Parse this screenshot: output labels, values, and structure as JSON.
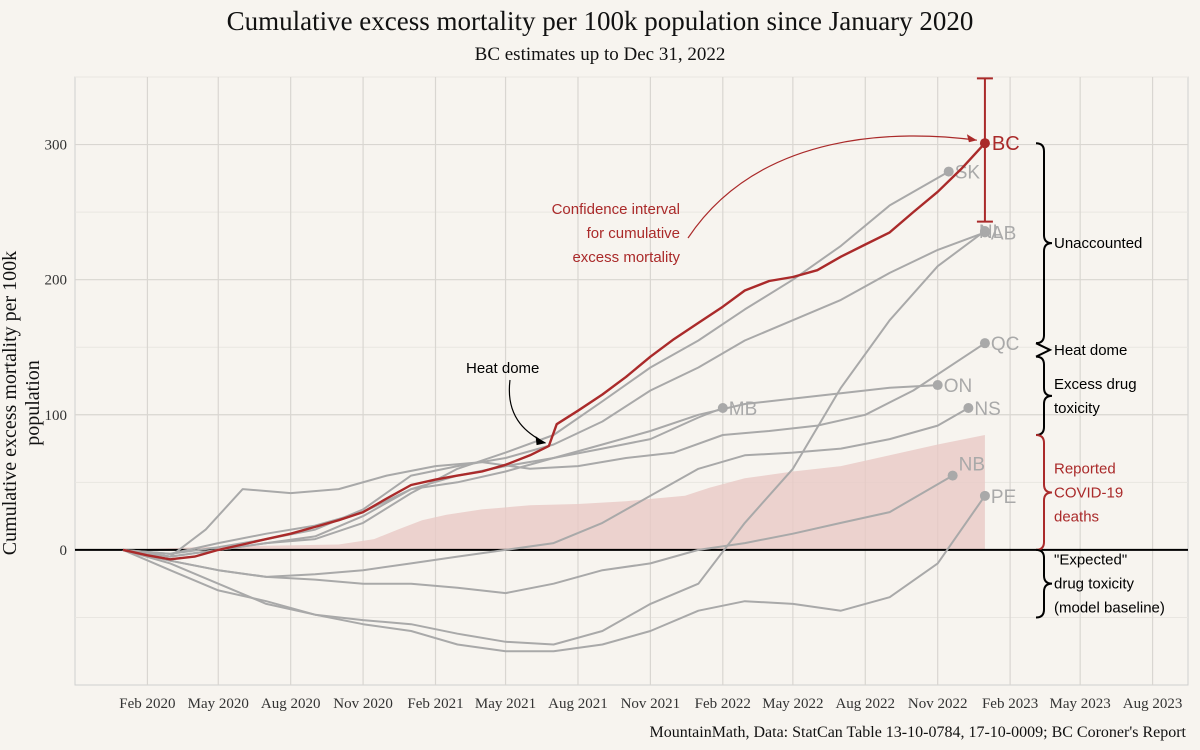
{
  "chart_data": {
    "type": "line",
    "title": "Cumulative excess mortality per 100k population since January 2020",
    "subtitle": "BC estimates up to Dec 31, 2022",
    "ylabel": "Cumulative excess mortality per 100k population",
    "xlabel": "",
    "caption": "MountainMath, Data: StatCan Table 13-10-0784, 17-10-0009; BC Coroner's Report",
    "ylim": [
      -100,
      350
    ],
    "xlim": [
      "2019-11-01",
      "2023-09-15"
    ],
    "y_ticks": [
      0,
      100,
      200,
      300
    ],
    "x_ticks": [
      {
        "date": "2020-02-01",
        "label": "Feb 2020"
      },
      {
        "date": "2020-05-01",
        "label": "May 2020"
      },
      {
        "date": "2020-08-01",
        "label": "Aug 2020"
      },
      {
        "date": "2020-11-01",
        "label": "Nov 2020"
      },
      {
        "date": "2021-02-01",
        "label": "Feb 2021"
      },
      {
        "date": "2021-05-01",
        "label": "May 2021"
      },
      {
        "date": "2021-08-01",
        "label": "Aug 2021"
      },
      {
        "date": "2021-11-01",
        "label": "Nov 2021"
      },
      {
        "date": "2022-02-01",
        "label": "Feb 2022"
      },
      {
        "date": "2022-05-01",
        "label": "May 2022"
      },
      {
        "date": "2022-08-01",
        "label": "Aug 2022"
      },
      {
        "date": "2022-11-01",
        "label": "Nov 2022"
      },
      {
        "date": "2023-02-01",
        "label": "Feb 2023"
      },
      {
        "date": "2023-05-01",
        "label": "May 2023"
      },
      {
        "date": "2023-08-01",
        "label": "Aug 2023"
      }
    ],
    "grid": true,
    "zero_line": true,
    "covid_band": {
      "color": "#e8c9c6",
      "points": [
        [
          "2020-01-01",
          0
        ],
        [
          "2020-04-01",
          2
        ],
        [
          "2020-07-01",
          3
        ],
        [
          "2020-10-01",
          4
        ],
        [
          "2020-11-15",
          8
        ],
        [
          "2020-12-15",
          15
        ],
        [
          "2021-01-15",
          22
        ],
        [
          "2021-02-15",
          26
        ],
        [
          "2021-04-01",
          30
        ],
        [
          "2021-06-01",
          33
        ],
        [
          "2021-08-01",
          34
        ],
        [
          "2021-10-01",
          36
        ],
        [
          "2021-12-15",
          40
        ],
        [
          "2022-01-15",
          46
        ],
        [
          "2022-03-01",
          53
        ],
        [
          "2022-05-01",
          58
        ],
        [
          "2022-07-01",
          62
        ],
        [
          "2022-09-01",
          70
        ],
        [
          "2022-11-01",
          78
        ],
        [
          "2022-12-31",
          85
        ]
      ]
    },
    "highlight": {
      "label": "BC",
      "color": "#aa2a2a",
      "points": [
        [
          "2020-01-01",
          0
        ],
        [
          "2020-02-01",
          -4
        ],
        [
          "2020-03-01",
          -7
        ],
        [
          "2020-04-01",
          -5
        ],
        [
          "2020-05-01",
          0
        ],
        [
          "2020-06-01",
          4
        ],
        [
          "2020-07-01",
          8
        ],
        [
          "2020-08-01",
          12
        ],
        [
          "2020-09-01",
          17
        ],
        [
          "2020-10-01",
          22
        ],
        [
          "2020-11-01",
          28
        ],
        [
          "2020-12-01",
          38
        ],
        [
          "2021-01-01",
          48
        ],
        [
          "2021-02-01",
          52
        ],
        [
          "2021-03-01",
          55
        ],
        [
          "2021-04-01",
          58
        ],
        [
          "2021-05-01",
          63
        ],
        [
          "2021-06-01",
          70
        ],
        [
          "2021-06-25",
          77
        ],
        [
          "2021-07-05",
          93
        ],
        [
          "2021-08-01",
          103
        ],
        [
          "2021-09-01",
          115
        ],
        [
          "2021-10-01",
          128
        ],
        [
          "2021-11-01",
          143
        ],
        [
          "2021-12-01",
          156
        ],
        [
          "2022-01-01",
          168
        ],
        [
          "2022-02-01",
          180
        ],
        [
          "2022-03-01",
          192
        ],
        [
          "2022-04-01",
          199
        ],
        [
          "2022-05-01",
          202
        ],
        [
          "2022-06-01",
          207
        ],
        [
          "2022-07-01",
          217
        ],
        [
          "2022-08-01",
          226
        ],
        [
          "2022-09-01",
          235
        ],
        [
          "2022-10-01",
          250
        ],
        [
          "2022-11-01",
          265
        ],
        [
          "2022-12-01",
          282
        ],
        [
          "2022-12-31",
          301
        ]
      ],
      "endpoint": {
        "date": "2022-12-31",
        "value": 301
      },
      "confidence_interval": [
        243,
        349
      ]
    },
    "series": [
      {
        "name": "SK",
        "end": {
          "date": "2022-11-15",
          "value": 280
        },
        "points": [
          [
            "2020-01-01",
            0
          ],
          [
            "2020-03-01",
            -5
          ],
          [
            "2020-05-01",
            0
          ],
          [
            "2020-07-01",
            5
          ],
          [
            "2020-09-01",
            8
          ],
          [
            "2020-11-01",
            20
          ],
          [
            "2021-01-01",
            42
          ],
          [
            "2021-03-01",
            60
          ],
          [
            "2021-05-01",
            72
          ],
          [
            "2021-07-01",
            85
          ],
          [
            "2021-09-01",
            110
          ],
          [
            "2021-11-01",
            135
          ],
          [
            "2022-01-01",
            155
          ],
          [
            "2022-03-01",
            178
          ],
          [
            "2022-05-01",
            200
          ],
          [
            "2022-07-01",
            225
          ],
          [
            "2022-09-01",
            255
          ],
          [
            "2022-11-15",
            280
          ]
        ]
      },
      {
        "name": "AB",
        "end": {
          "date": "2022-12-31",
          "value": 235
        },
        "points": [
          [
            "2020-01-01",
            0
          ],
          [
            "2020-03-01",
            -3
          ],
          [
            "2020-05-01",
            2
          ],
          [
            "2020-07-01",
            8
          ],
          [
            "2020-09-01",
            15
          ],
          [
            "2020-11-01",
            30
          ],
          [
            "2021-01-01",
            55
          ],
          [
            "2021-03-01",
            62
          ],
          [
            "2021-05-01",
            68
          ],
          [
            "2021-07-01",
            78
          ],
          [
            "2021-09-01",
            95
          ],
          [
            "2021-11-01",
            118
          ],
          [
            "2022-01-01",
            135
          ],
          [
            "2022-03-01",
            155
          ],
          [
            "2022-05-01",
            170
          ],
          [
            "2022-07-01",
            185
          ],
          [
            "2022-09-01",
            205
          ],
          [
            "2022-11-01",
            222
          ],
          [
            "2022-12-31",
            235
          ]
        ]
      },
      {
        "name": "NL",
        "end": {
          "date": "2022-12-31",
          "value": 236
        },
        "points": [
          [
            "2020-01-01",
            0
          ],
          [
            "2020-03-01",
            -10
          ],
          [
            "2020-05-01",
            -25
          ],
          [
            "2020-07-01",
            -40
          ],
          [
            "2020-09-01",
            -48
          ],
          [
            "2020-11-01",
            -52
          ],
          [
            "2021-01-01",
            -55
          ],
          [
            "2021-03-01",
            -62
          ],
          [
            "2021-05-01",
            -68
          ],
          [
            "2021-07-01",
            -70
          ],
          [
            "2021-09-01",
            -60
          ],
          [
            "2021-11-01",
            -40
          ],
          [
            "2022-01-01",
            -25
          ],
          [
            "2022-03-01",
            20
          ],
          [
            "2022-05-01",
            60
          ],
          [
            "2022-07-01",
            120
          ],
          [
            "2022-09-01",
            170
          ],
          [
            "2022-11-01",
            210
          ],
          [
            "2022-12-31",
            236
          ]
        ]
      },
      {
        "name": "QC",
        "end": {
          "date": "2022-12-31",
          "value": 153
        },
        "points": [
          [
            "2020-01-01",
            0
          ],
          [
            "2020-03-01",
            -5
          ],
          [
            "2020-04-15",
            15
          ],
          [
            "2020-06-01",
            45
          ],
          [
            "2020-08-01",
            42
          ],
          [
            "2020-10-01",
            45
          ],
          [
            "2020-12-01",
            55
          ],
          [
            "2021-02-01",
            62
          ],
          [
            "2021-04-01",
            65
          ],
          [
            "2021-06-01",
            60
          ],
          [
            "2021-08-01",
            62
          ],
          [
            "2021-10-01",
            68
          ],
          [
            "2021-12-01",
            72
          ],
          [
            "2022-02-01",
            85
          ],
          [
            "2022-04-01",
            88
          ],
          [
            "2022-06-01",
            92
          ],
          [
            "2022-08-01",
            100
          ],
          [
            "2022-10-01",
            118
          ],
          [
            "2022-12-31",
            153
          ]
        ]
      },
      {
        "name": "ON",
        "end": {
          "date": "2022-11-01",
          "value": 122
        },
        "points": [
          [
            "2020-01-01",
            0
          ],
          [
            "2020-03-01",
            -3
          ],
          [
            "2020-05-01",
            5
          ],
          [
            "2020-07-01",
            12
          ],
          [
            "2020-09-01",
            18
          ],
          [
            "2020-11-01",
            28
          ],
          [
            "2021-01-01",
            45
          ],
          [
            "2021-03-01",
            55
          ],
          [
            "2021-05-01",
            62
          ],
          [
            "2021-07-01",
            68
          ],
          [
            "2021-09-01",
            78
          ],
          [
            "2021-11-01",
            88
          ],
          [
            "2022-01-01",
            100
          ],
          [
            "2022-03-01",
            108
          ],
          [
            "2022-05-01",
            112
          ],
          [
            "2022-07-01",
            116
          ],
          [
            "2022-09-01",
            120
          ],
          [
            "2022-11-01",
            122
          ]
        ]
      },
      {
        "name": "MB",
        "end": {
          "date": "2022-02-01",
          "value": 105
        },
        "points": [
          [
            "2020-01-01",
            0
          ],
          [
            "2020-03-01",
            -5
          ],
          [
            "2020-05-01",
            0
          ],
          [
            "2020-07-01",
            5
          ],
          [
            "2020-09-01",
            10
          ],
          [
            "2020-11-01",
            25
          ],
          [
            "2021-01-01",
            45
          ],
          [
            "2021-03-01",
            50
          ],
          [
            "2021-05-01",
            58
          ],
          [
            "2021-07-01",
            68
          ],
          [
            "2021-09-01",
            75
          ],
          [
            "2021-11-01",
            82
          ],
          [
            "2022-01-01",
            98
          ],
          [
            "2022-02-01",
            105
          ]
        ]
      },
      {
        "name": "NS",
        "end": {
          "date": "2022-12-10",
          "value": 105
        },
        "points": [
          [
            "2020-01-01",
            0
          ],
          [
            "2020-03-01",
            -8
          ],
          [
            "2020-05-01",
            -15
          ],
          [
            "2020-07-01",
            -20
          ],
          [
            "2020-09-01",
            -18
          ],
          [
            "2020-11-01",
            -15
          ],
          [
            "2021-01-01",
            -10
          ],
          [
            "2021-03-01",
            -5
          ],
          [
            "2021-05-01",
            0
          ],
          [
            "2021-07-01",
            5
          ],
          [
            "2021-09-01",
            20
          ],
          [
            "2021-11-01",
            40
          ],
          [
            "2022-01-01",
            60
          ],
          [
            "2022-03-01",
            70
          ],
          [
            "2022-05-01",
            72
          ],
          [
            "2022-07-01",
            75
          ],
          [
            "2022-09-01",
            82
          ],
          [
            "2022-11-01",
            92
          ],
          [
            "2022-12-10",
            105
          ]
        ]
      },
      {
        "name": "NB",
        "end": {
          "date": "2022-11-20",
          "value": 55
        },
        "points": [
          [
            "2020-01-01",
            0
          ],
          [
            "2020-03-01",
            -8
          ],
          [
            "2020-05-01",
            -15
          ],
          [
            "2020-07-01",
            -20
          ],
          [
            "2020-09-01",
            -22
          ],
          [
            "2020-11-01",
            -25
          ],
          [
            "2021-01-01",
            -25
          ],
          [
            "2021-03-01",
            -28
          ],
          [
            "2021-05-01",
            -32
          ],
          [
            "2021-07-01",
            -25
          ],
          [
            "2021-09-01",
            -15
          ],
          [
            "2021-11-01",
            -10
          ],
          [
            "2022-01-01",
            0
          ],
          [
            "2022-03-01",
            5
          ],
          [
            "2022-05-01",
            12
          ],
          [
            "2022-07-01",
            20
          ],
          [
            "2022-09-01",
            28
          ],
          [
            "2022-11-20",
            55
          ]
        ]
      },
      {
        "name": "PE",
        "end": {
          "date": "2022-12-31",
          "value": 40
        },
        "points": [
          [
            "2020-01-01",
            0
          ],
          [
            "2020-03-01",
            -15
          ],
          [
            "2020-05-01",
            -30
          ],
          [
            "2020-07-01",
            -38
          ],
          [
            "2020-09-01",
            -48
          ],
          [
            "2020-11-01",
            -55
          ],
          [
            "2021-01-01",
            -60
          ],
          [
            "2021-03-01",
            -70
          ],
          [
            "2021-05-01",
            -75
          ],
          [
            "2021-07-01",
            -75
          ],
          [
            "2021-09-01",
            -70
          ],
          [
            "2021-11-01",
            -60
          ],
          [
            "2022-01-01",
            -45
          ],
          [
            "2022-03-01",
            -38
          ],
          [
            "2022-05-01",
            -40
          ],
          [
            "2022-07-01",
            -45
          ],
          [
            "2022-09-01",
            -35
          ],
          [
            "2022-11-01",
            -10
          ],
          [
            "2022-12-31",
            40
          ]
        ]
      }
    ],
    "annotations": {
      "heat_dome": {
        "text": "Heat dome",
        "date": "2021-07-01",
        "value": 82
      },
      "ci_note": {
        "lines": [
          "Confidence interval",
          "for cumulative",
          "excess mortality"
        ]
      }
    },
    "brackets": [
      {
        "lines": [
          "Unaccounted"
        ],
        "from": 153,
        "to": 301,
        "color": "#000000"
      },
      {
        "lines": [
          "Heat dome"
        ],
        "from": 143,
        "to": 153,
        "color": "#000000"
      },
      {
        "lines": [
          "Excess drug",
          "toxicity"
        ],
        "from": 85,
        "to": 143,
        "color": "#000000"
      },
      {
        "lines": [
          "Reported",
          "COVID-19",
          "deaths"
        ],
        "from": 0,
        "to": 85,
        "color": "#aa2a2a"
      },
      {
        "lines": [
          "\"Expected\"",
          "drug toxicity",
          "(model baseline)"
        ],
        "from": -50,
        "to": 0,
        "color": "#000000"
      }
    ]
  }
}
